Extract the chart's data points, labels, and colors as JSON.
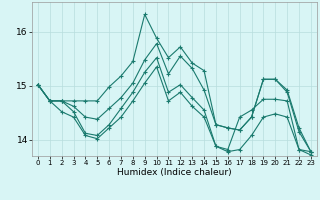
{
  "xlabel": "Humidex (Indice chaleur)",
  "bg_color": "#d8f5f5",
  "grid_color": "#b8dede",
  "line_color": "#1a7a6e",
  "xlim": [
    -0.5,
    23.5
  ],
  "ylim": [
    13.7,
    16.55
  ],
  "yticks": [
    14,
    15,
    16
  ],
  "xticks": [
    0,
    1,
    2,
    3,
    4,
    5,
    6,
    7,
    8,
    9,
    10,
    11,
    12,
    13,
    14,
    15,
    16,
    17,
    18,
    19,
    20,
    21,
    22,
    23
  ],
  "series": [
    [
      15.02,
      14.72,
      14.72,
      14.72,
      14.72,
      14.72,
      14.98,
      15.18,
      15.45,
      16.32,
      15.88,
      15.52,
      15.72,
      15.42,
      15.28,
      14.28,
      14.22,
      14.18,
      14.42,
      15.12,
      15.12,
      14.92,
      14.22,
      13.78
    ],
    [
      15.02,
      14.72,
      14.72,
      14.62,
      14.42,
      14.38,
      14.58,
      14.78,
      15.05,
      15.48,
      15.78,
      15.22,
      15.55,
      15.32,
      14.92,
      14.28,
      14.22,
      14.18,
      14.42,
      15.12,
      15.12,
      14.88,
      14.15,
      13.78
    ],
    [
      15.02,
      14.72,
      14.72,
      14.52,
      14.12,
      14.08,
      14.28,
      14.58,
      14.88,
      15.25,
      15.52,
      14.88,
      15.02,
      14.78,
      14.55,
      13.88,
      13.82,
      14.42,
      14.55,
      14.75,
      14.75,
      14.72,
      13.82,
      13.78
    ],
    [
      15.02,
      14.72,
      14.52,
      14.42,
      14.08,
      14.02,
      14.22,
      14.42,
      14.72,
      15.05,
      15.35,
      14.72,
      14.88,
      14.62,
      14.42,
      13.88,
      13.78,
      13.82,
      14.08,
      14.42,
      14.48,
      14.42,
      13.82,
      13.72
    ]
  ]
}
